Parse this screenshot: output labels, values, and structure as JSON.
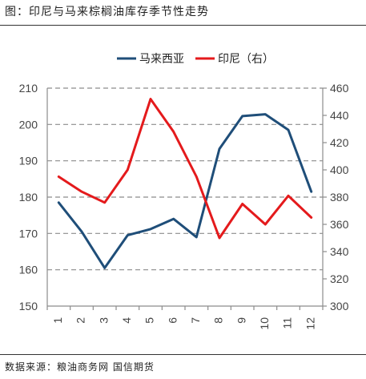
{
  "header": {
    "title": "图：印尼与马来棕榈油库存季节性走势"
  },
  "footer": {
    "source": "数据来源：粮油商务网  国信期货"
  },
  "chart_data": {
    "type": "line",
    "categories": [
      "1",
      "2",
      "3",
      "4",
      "5",
      "6",
      "7",
      "8",
      "9",
      "10",
      "11",
      "12"
    ],
    "series": [
      {
        "name": "马来西亚",
        "axis": "left",
        "color": "#1f4e79",
        "values": [
          178.5,
          170.5,
          160.5,
          169.5,
          171.2,
          174.0,
          169.0,
          193.3,
          202.3,
          202.8,
          198.5,
          181.5
        ]
      },
      {
        "name": "印尼（右）",
        "axis": "right",
        "color": "#e41a1c",
        "values": [
          395,
          384,
          376,
          400,
          452,
          428,
          395,
          350,
          375,
          360,
          381,
          365
        ]
      }
    ],
    "yleft": {
      "ylim": [
        150,
        210
      ],
      "ticks": [
        150,
        160,
        170,
        180,
        190,
        200,
        210
      ]
    },
    "yright": {
      "ylim": [
        300,
        460
      ],
      "ticks": [
        300,
        320,
        340,
        360,
        380,
        400,
        420,
        440,
        460
      ]
    },
    "grid": true,
    "legend": "top-center"
  }
}
